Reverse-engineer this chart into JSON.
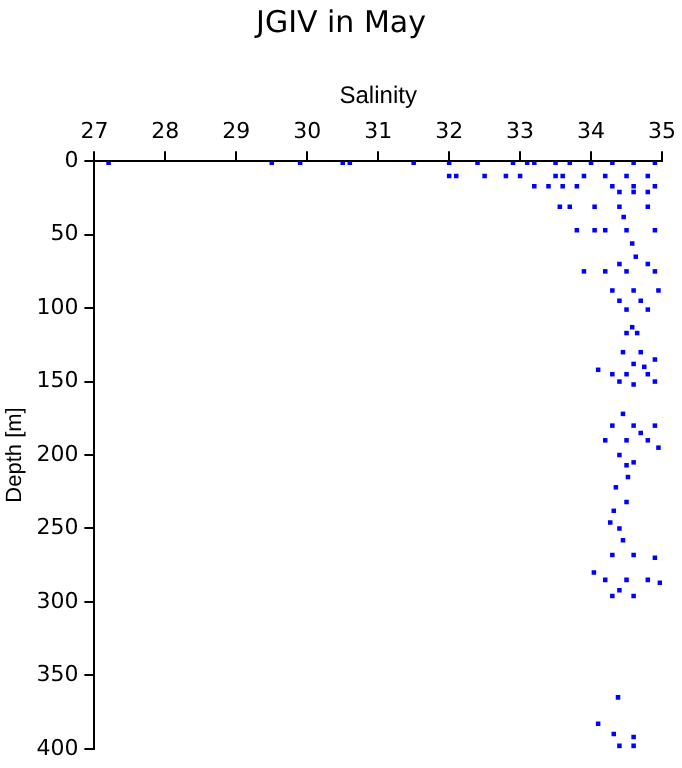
{
  "chart_data": {
    "type": "scatter",
    "title": "JGIV in May",
    "xlabel": "Salinity",
    "ylabel": "Depth [m]",
    "xlim": [
      27,
      35
    ],
    "xticks": [
      27,
      28,
      29,
      30,
      31,
      32,
      33,
      34,
      35
    ],
    "ylim": [
      400,
      0
    ],
    "yticks": [
      0,
      50,
      100,
      150,
      200,
      250,
      300,
      350,
      400
    ],
    "grid": false,
    "legend": false,
    "marker": "square",
    "series": [
      {
        "color": "#0000ff",
        "x": [
          27.2,
          29.5,
          29.9,
          30.5,
          30.6,
          31.5,
          32.0,
          32.4,
          32.9,
          33.1,
          33.2,
          33.5,
          33.7,
          34.0,
          34.3,
          34.6,
          34.9,
          32.0,
          32.1,
          32.5,
          32.8,
          33.0,
          33.5,
          33.6,
          33.9,
          34.2,
          34.5,
          34.8,
          33.2,
          33.4,
          33.6,
          33.8,
          34.3,
          34.6,
          34.9,
          34.4,
          34.6,
          34.8,
          33.56,
          33.7,
          34.05,
          34.4,
          34.8,
          34.46,
          33.8,
          34.05,
          34.2,
          34.5,
          34.9,
          34.58,
          34.63,
          34.4,
          34.8,
          33.9,
          34.2,
          34.5,
          34.9,
          34.3,
          34.6,
          34.95,
          34.4,
          34.7,
          34.5,
          34.8,
          34.58,
          34.5,
          34.65,
          34.45,
          34.7,
          34.9,
          34.6,
          34.1,
          34.3,
          34.5,
          34.8,
          34.9,
          34.4,
          34.6,
          34.75,
          34.45,
          34.3,
          34.6,
          34.9,
          34.2,
          34.5,
          34.8,
          34.95,
          34.4,
          34.6,
          34.5,
          34.7,
          34.52,
          34.35,
          34.5,
          34.32,
          34.27,
          34.4,
          34.45,
          34.3,
          34.6,
          34.9,
          34.04,
          34.2,
          34.5,
          34.8,
          34.97,
          34.3,
          34.6,
          34.4,
          34.38,
          34.1,
          34.32,
          34.6,
          34.4,
          34.6
        ],
        "values": [
          1,
          1,
          1,
          1,
          1,
          1,
          1,
          1,
          1,
          1,
          1,
          1,
          1,
          1,
          1,
          1,
          1,
          10,
          10,
          10,
          10,
          10,
          10,
          10,
          10,
          10,
          10,
          10,
          17,
          17,
          17,
          17,
          17,
          17,
          17,
          21,
          21,
          21,
          31,
          31,
          31,
          31,
          31,
          38,
          47,
          47,
          47,
          47,
          47,
          56,
          65,
          70,
          70,
          75,
          75,
          75,
          75,
          88,
          88,
          88,
          95,
          95,
          101,
          101,
          113,
          117,
          117,
          130,
          130,
          135,
          138,
          142,
          145,
          145,
          145,
          150,
          150,
          152,
          140,
          172,
          180,
          180,
          180,
          190,
          190,
          190,
          195,
          200,
          205,
          207,
          185,
          215,
          222,
          232,
          238,
          246,
          250,
          258,
          268,
          268,
          270,
          280,
          285,
          285,
          285,
          287,
          296,
          296,
          292,
          365,
          383,
          390,
          392,
          398,
          398
        ]
      }
    ]
  }
}
